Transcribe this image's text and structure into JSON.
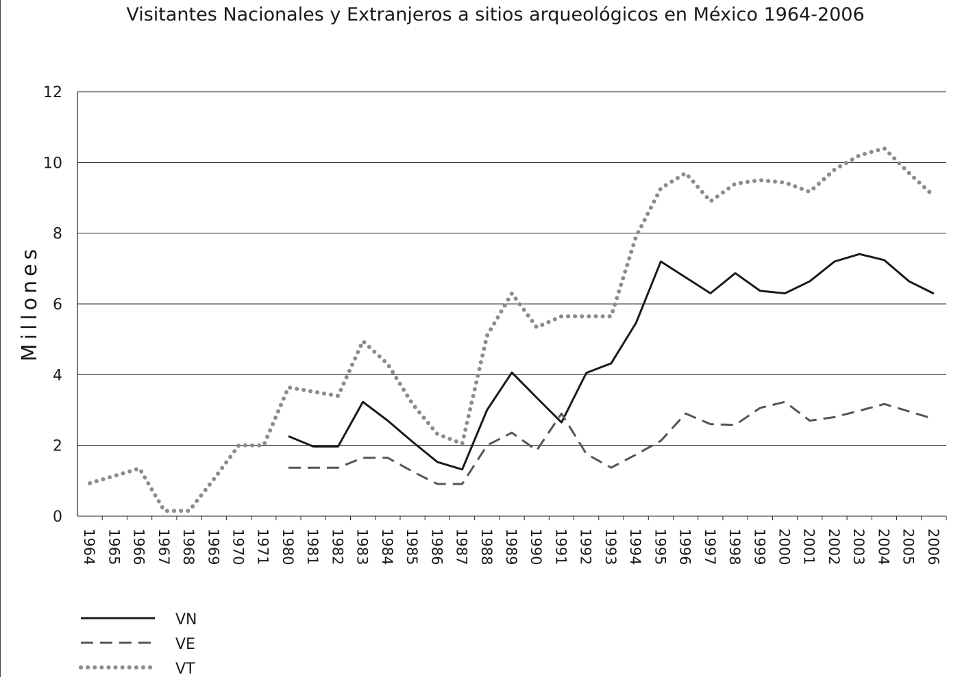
{
  "chart_data": {
    "type": "line",
    "title": "Visitantes Nacionales y Extranjeros a sitios arqueológicos en México 1964-2006",
    "xlabel": "",
    "ylabel": "Millones",
    "ylim": [
      0,
      12
    ],
    "yticks": [
      0,
      2,
      4,
      6,
      8,
      10,
      12
    ],
    "grid": true,
    "legend_placement": "bottom-left",
    "categories": [
      "1964",
      "1965",
      "1966",
      "1967",
      "1968",
      "1969",
      "1970",
      "1971",
      "1980",
      "1981",
      "1982",
      "1983",
      "1984",
      "1985",
      "1986",
      "1987",
      "1988",
      "1989",
      "1990",
      "1991",
      "1992",
      "1993",
      "1994",
      "1995",
      "1996",
      "1997",
      "1998",
      "1999",
      "2000",
      "2001",
      "2002",
      "2003",
      "2004",
      "2005",
      "2006"
    ],
    "series": [
      {
        "name": "VN",
        "style": "solid",
        "color": "#1a1a1a",
        "values": [
          null,
          null,
          null,
          null,
          null,
          null,
          null,
          null,
          2.26,
          1.97,
          1.97,
          3.23,
          2.7,
          2.1,
          1.53,
          1.32,
          3.0,
          4.06,
          3.35,
          2.65,
          4.05,
          4.32,
          5.46,
          7.2,
          6.75,
          6.3,
          6.87,
          6.37,
          6.3,
          6.64,
          7.2,
          7.41,
          7.24,
          6.64,
          6.29
        ]
      },
      {
        "name": "VE",
        "style": "dashed",
        "color": "#555555",
        "values": [
          null,
          null,
          null,
          null,
          null,
          null,
          null,
          null,
          1.37,
          1.37,
          1.37,
          1.65,
          1.65,
          1.26,
          0.91,
          0.91,
          2.0,
          2.36,
          1.86,
          2.9,
          1.76,
          1.37,
          1.74,
          2.13,
          2.9,
          2.6,
          2.58,
          3.06,
          3.23,
          2.7,
          2.8,
          2.98,
          3.17,
          2.96,
          2.75
        ]
      },
      {
        "name": "VT",
        "style": "dotted",
        "color": "#8c8c8c",
        "values": [
          0.93,
          1.14,
          1.35,
          0.15,
          0.15,
          1.05,
          2.0,
          2.0,
          3.64,
          3.52,
          3.4,
          4.95,
          4.3,
          3.17,
          2.32,
          2.05,
          5.1,
          6.3,
          5.34,
          5.65,
          5.65,
          5.65,
          7.9,
          9.27,
          9.7,
          8.9,
          9.4,
          9.5,
          9.43,
          9.17,
          9.8,
          10.2,
          10.4,
          9.7,
          9.05
        ]
      }
    ]
  }
}
